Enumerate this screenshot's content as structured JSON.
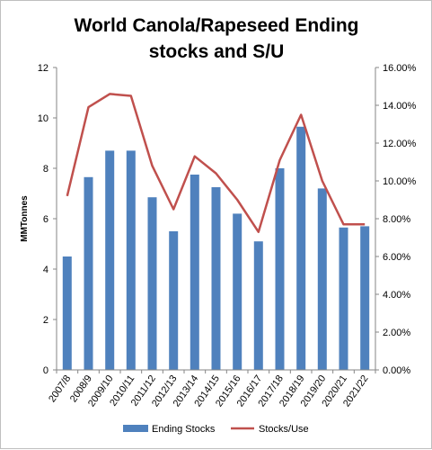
{
  "chart_data": {
    "type": "bar",
    "title_lines": [
      "World Canola/Rapeseed Ending",
      "stocks and S/U"
    ],
    "ylabel": "MMTonnes",
    "categories": [
      "2007/8",
      "2008/9",
      "2009/10",
      "2010/11",
      "2011/12",
      "2012/13",
      "2013/14",
      "2014/15",
      "2015/16",
      "2016/17",
      "2017/18",
      "2018/19",
      "2019/20",
      "2020/21",
      "2021/22"
    ],
    "ylim": [
      0,
      12
    ],
    "y_ticks": [
      "0",
      "2",
      "4",
      "6",
      "8",
      "10",
      "12"
    ],
    "y2lim": [
      0,
      0.16
    ],
    "y2_ticks": [
      "0.00%",
      "2.00%",
      "4.00%",
      "6.00%",
      "8.00%",
      "10.00%",
      "12.00%",
      "14.00%",
      "16.00%"
    ],
    "series": [
      {
        "name": "Ending Stocks",
        "type": "bar",
        "axis": "left",
        "color": "#4f81bd",
        "values": [
          4.5,
          7.65,
          8.7,
          8.7,
          6.85,
          5.5,
          7.75,
          7.25,
          6.2,
          5.1,
          8.0,
          9.65,
          7.2,
          5.65,
          5.7
        ]
      },
      {
        "name": "Stocks/Use",
        "type": "line",
        "axis": "right",
        "color": "#c0504d",
        "values": [
          0.092,
          0.139,
          0.146,
          0.145,
          0.108,
          0.085,
          0.113,
          0.104,
          0.09,
          0.073,
          0.111,
          0.135,
          0.1,
          0.077,
          0.077
        ]
      }
    ],
    "grid": false,
    "legend_position": "bottom"
  }
}
